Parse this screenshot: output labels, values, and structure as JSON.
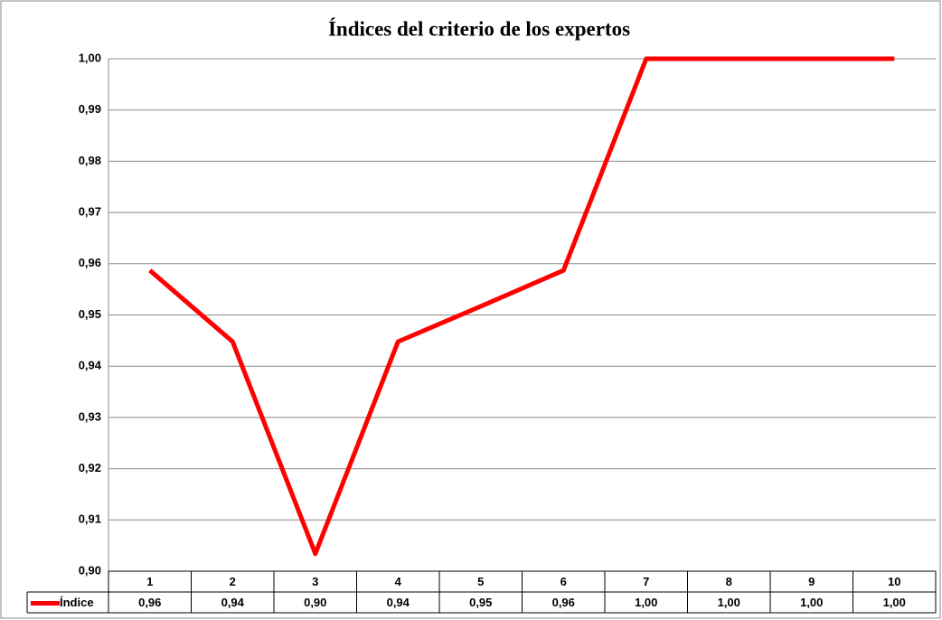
{
  "chart_data": {
    "type": "line",
    "title": "Índices del criterio de los expertos",
    "categories": [
      "1",
      "2",
      "3",
      "4",
      "5",
      "6",
      "7",
      "8",
      "9",
      "10"
    ],
    "series": [
      {
        "name": "Índice",
        "color": "#ff0000",
        "values": [
          0.9587,
          0.9448,
          0.9034,
          0.9448,
          0.9517,
          0.9587,
          1.0,
          1.0,
          1.0,
          1.0
        ],
        "value_labels": [
          "0,96",
          "0,94",
          "0,90",
          "0,94",
          "0,95",
          "0,96",
          "1,00",
          "1,00",
          "1,00",
          "1,00"
        ]
      }
    ],
    "ylim": [
      0.9,
      1.0
    ],
    "yticks": [
      {
        "value": 0.9,
        "label": "0,90"
      },
      {
        "value": 0.91,
        "label": "0,91"
      },
      {
        "value": 0.92,
        "label": "0,92"
      },
      {
        "value": 0.93,
        "label": "0,93"
      },
      {
        "value": 0.94,
        "label": "0,94"
      },
      {
        "value": 0.95,
        "label": "0,95"
      },
      {
        "value": 0.96,
        "label": "0,96"
      },
      {
        "value": 0.97,
        "label": "0,97"
      },
      {
        "value": 0.98,
        "label": "0,98"
      },
      {
        "value": 0.99,
        "label": "0,99"
      },
      {
        "value": 1.0,
        "label": "1,00"
      }
    ],
    "grid": true
  }
}
